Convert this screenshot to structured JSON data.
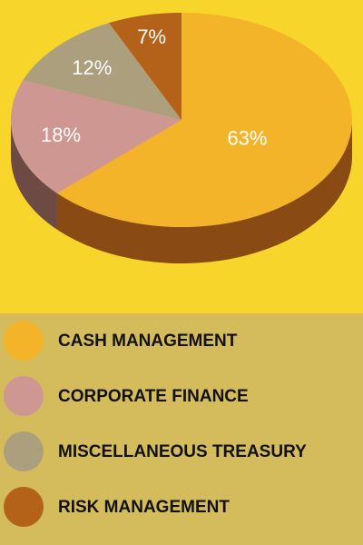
{
  "chart_data": {
    "type": "pie",
    "title": "",
    "slices": [
      {
        "label": "CASH MANAGEMENT",
        "value": 63,
        "display": "63%",
        "color": "#f4b429",
        "side_color": "#8a4a14"
      },
      {
        "label": "CORPORATE FINANCE",
        "value": 18,
        "display": "18%",
        "color": "#cf9791",
        "side_color": "#6e4a44"
      },
      {
        "label": "MISCELLANEOUS TREASURY",
        "value": 12,
        "display": "12%",
        "color": "#ab9f7e",
        "side_color": "#5c5440"
      },
      {
        "label": "RISK MANAGEMENT",
        "value": 7,
        "display": "7%",
        "color": "#b4621a",
        "side_color": "#6a3608"
      }
    ],
    "legend_position": "bottom",
    "style": "3d"
  },
  "colors": {
    "chart_background": "#f7d52a",
    "legend_background": "#d4bb5c",
    "label_text": "#ffffff",
    "legend_text": "#111111"
  }
}
